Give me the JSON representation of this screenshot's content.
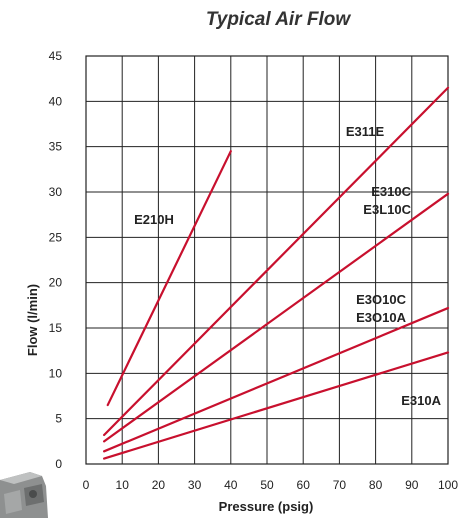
{
  "chart_data": {
    "type": "line",
    "title": "Typical Air Flow",
    "xlabel": "Pressure (psig)",
    "ylabel": "Flow (l/min)",
    "xlim": [
      0,
      100
    ],
    "ylim": [
      0,
      45
    ],
    "xticks": [
      "0",
      "10",
      "20",
      "30",
      "40",
      "50",
      "60",
      "70",
      "80",
      "90",
      "100"
    ],
    "yticks": [
      "0",
      "5",
      "10",
      "15",
      "20",
      "25",
      "30",
      "35",
      "40",
      "45"
    ],
    "grid": true,
    "line_color": "#c8102e",
    "series": [
      {
        "name": "E210H",
        "x": [
          6,
          40
        ],
        "y": [
          6.5,
          34.5
        ]
      },
      {
        "name": "E311E",
        "x": [
          5,
          100
        ],
        "y": [
          3.2,
          41.5
        ]
      },
      {
        "name": "E310C\nE3L10C",
        "x": [
          5,
          100
        ],
        "y": [
          2.5,
          29.8
        ]
      },
      {
        "name": "E3O10C\nE3O10A",
        "x": [
          5,
          100
        ],
        "y": [
          1.4,
          17.2
        ]
      },
      {
        "name": "E310A",
        "x": [
          5,
          100
        ],
        "y": [
          0.6,
          12.3
        ]
      }
    ]
  },
  "background_image": {
    "icon": "product-photo-fragment"
  }
}
